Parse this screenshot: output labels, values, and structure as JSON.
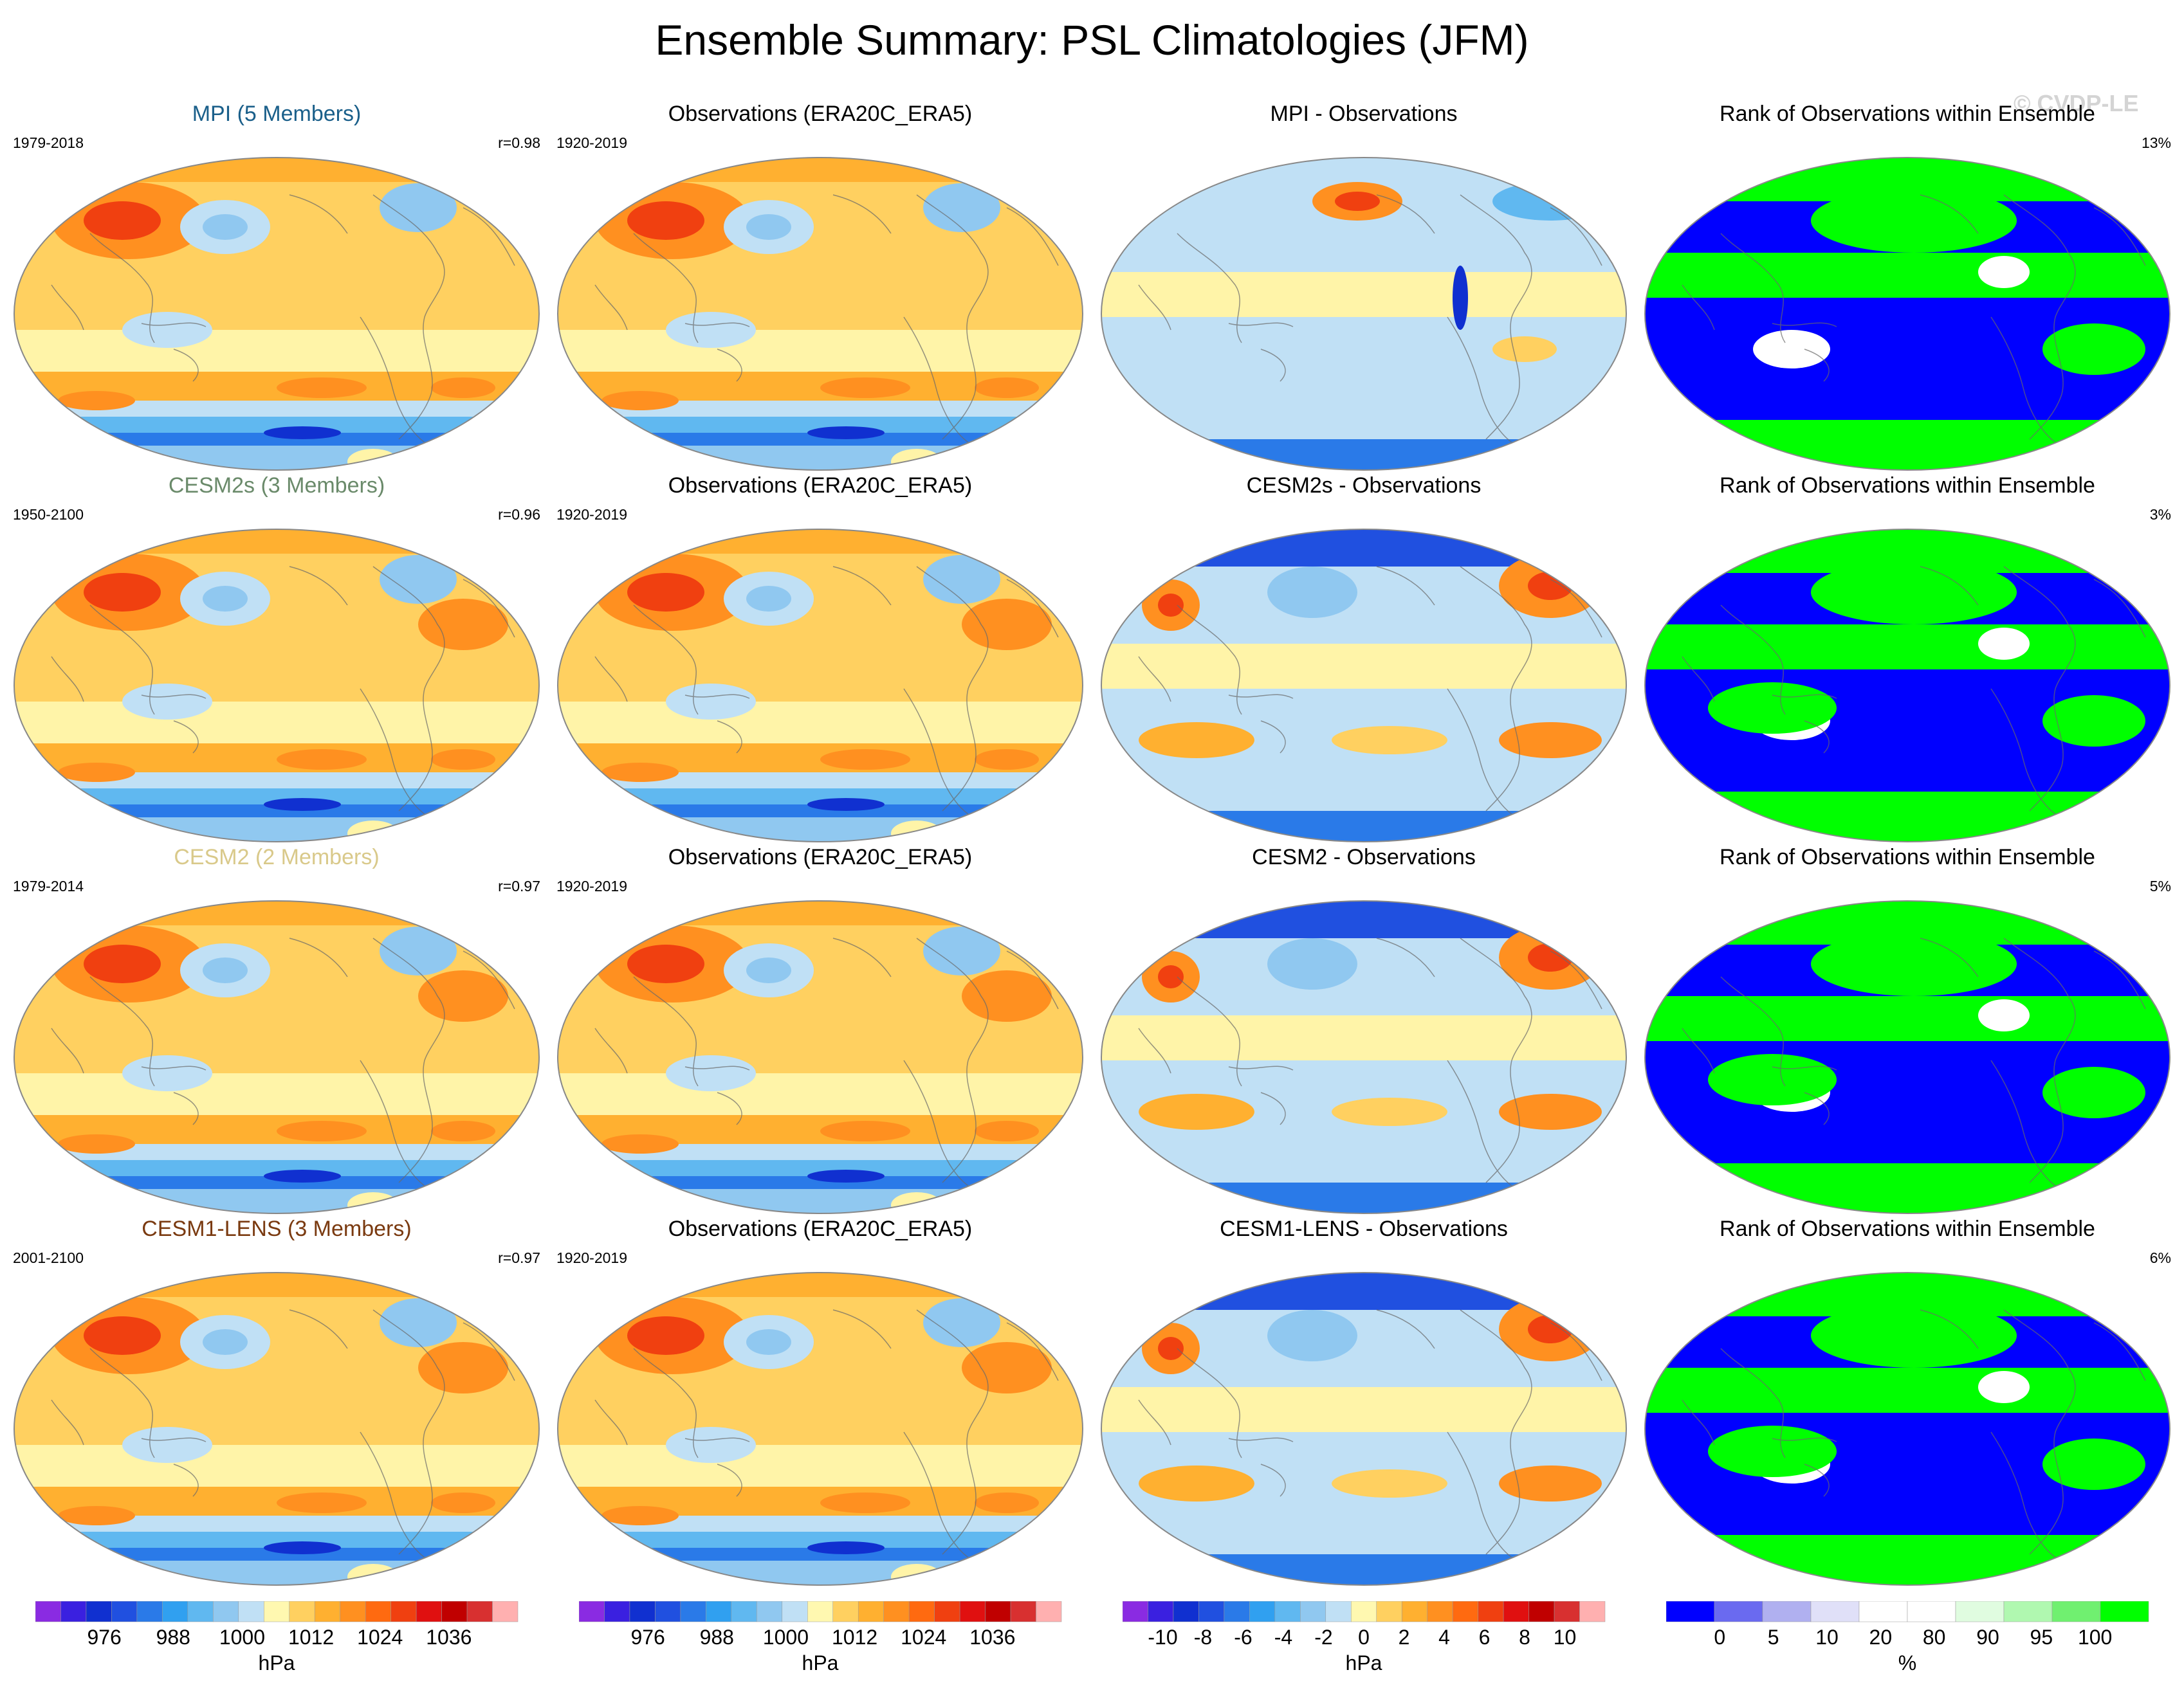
{
  "title": "Ensemble Summary: PSL Climatologies (JFM)",
  "watermark": "© CVDP-LE",
  "colors": {
    "mpi": "#1a5f8a",
    "cesm2s": "#6a8a6a",
    "cesm2": "#d9c98a",
    "cesm1": "#7a3a10"
  },
  "rows": [
    {
      "model": {
        "title": "MPI (5 Members)",
        "years": "1979-2018",
        "corr": "r=0.98"
      },
      "obs": {
        "title": "Observations (ERA20C_ERA5)",
        "years": "1920-2019"
      },
      "diff": {
        "title": "MPI - Observations"
      },
      "rank": {
        "title": "Rank of Observations within Ensemble",
        "pct": "13%"
      }
    },
    {
      "model": {
        "title": "CESM2s (3 Members)",
        "years": "1950-2100",
        "corr": "r=0.96"
      },
      "obs": {
        "title": "Observations (ERA20C_ERA5)",
        "years": "1920-2019"
      },
      "diff": {
        "title": "CESM2s - Observations"
      },
      "rank": {
        "title": "Rank of Observations within Ensemble",
        "pct": "3%"
      }
    },
    {
      "model": {
        "title": "CESM2 (2 Members)",
        "years": "1979-2014",
        "corr": "r=0.97"
      },
      "obs": {
        "title": "Observations (ERA20C_ERA5)",
        "years": "1920-2019"
      },
      "diff": {
        "title": "CESM2 - Observations"
      },
      "rank": {
        "title": "Rank of Observations within Ensemble",
        "pct": "5%"
      }
    },
    {
      "model": {
        "title": "CESM1-LENS (3 Members)",
        "years": "2001-2100",
        "corr": "r=0.97"
      },
      "obs": {
        "title": "Observations (ERA20C_ERA5)",
        "years": "1920-2019"
      },
      "diff": {
        "title": "CESM1-LENS - Observations"
      },
      "rank": {
        "title": "Rank of Observations within Ensemble",
        "pct": "6%"
      }
    }
  ],
  "colorbars": [
    {
      "unit": "hPa",
      "labels": [
        "976",
        "988",
        "1000",
        "1012",
        "1024",
        "1036"
      ],
      "colors": [
        "#8a2be2",
        "#3a20e0",
        "#1030d0",
        "#2050e0",
        "#2a7ae8",
        "#30a0f0",
        "#60b8f0",
        "#90c8f0",
        "#c0e0f5",
        "#fff8b0",
        "#ffd060",
        "#ffb030",
        "#ff9020",
        "#ff6a10",
        "#f04010",
        "#e01010",
        "#c00000",
        "#d83030",
        "#ffb0b0"
      ]
    },
    {
      "unit": "hPa",
      "labels": [
        "976",
        "988",
        "1000",
        "1012",
        "1024",
        "1036"
      ],
      "colors": [
        "#8a2be2",
        "#3a20e0",
        "#1030d0",
        "#2050e0",
        "#2a7ae8",
        "#30a0f0",
        "#60b8f0",
        "#90c8f0",
        "#c0e0f5",
        "#fff8b0",
        "#ffd060",
        "#ffb030",
        "#ff9020",
        "#ff6a10",
        "#f04010",
        "#e01010",
        "#c00000",
        "#d83030",
        "#ffb0b0"
      ]
    },
    {
      "unit": "hPa",
      "labels": [
        "-10",
        "-8",
        "-6",
        "-4",
        "-2",
        "0",
        "2",
        "4",
        "6",
        "8",
        "10"
      ],
      "colors": [
        "#8a2be2",
        "#3a20e0",
        "#1030d0",
        "#2050e0",
        "#2a7ae8",
        "#30a0f0",
        "#60b8f0",
        "#90c8f0",
        "#c0e0f5",
        "#fff8b0",
        "#ffd060",
        "#ffb030",
        "#ff9020",
        "#ff6a10",
        "#f04010",
        "#e01010",
        "#c00000",
        "#d83030",
        "#ffb0b0"
      ]
    },
    {
      "unit": "%",
      "labels": [
        "0",
        "5",
        "10",
        "20",
        "80",
        "90",
        "95",
        "100"
      ],
      "colors": [
        "#0000ff",
        "#6a6af0",
        "#b0b0f0",
        "#e0e0f8",
        "#ffffff",
        "#ffffff",
        "#e0fce0",
        "#b0f8b0",
        "#70f070",
        "#00ff00"
      ]
    }
  ]
}
